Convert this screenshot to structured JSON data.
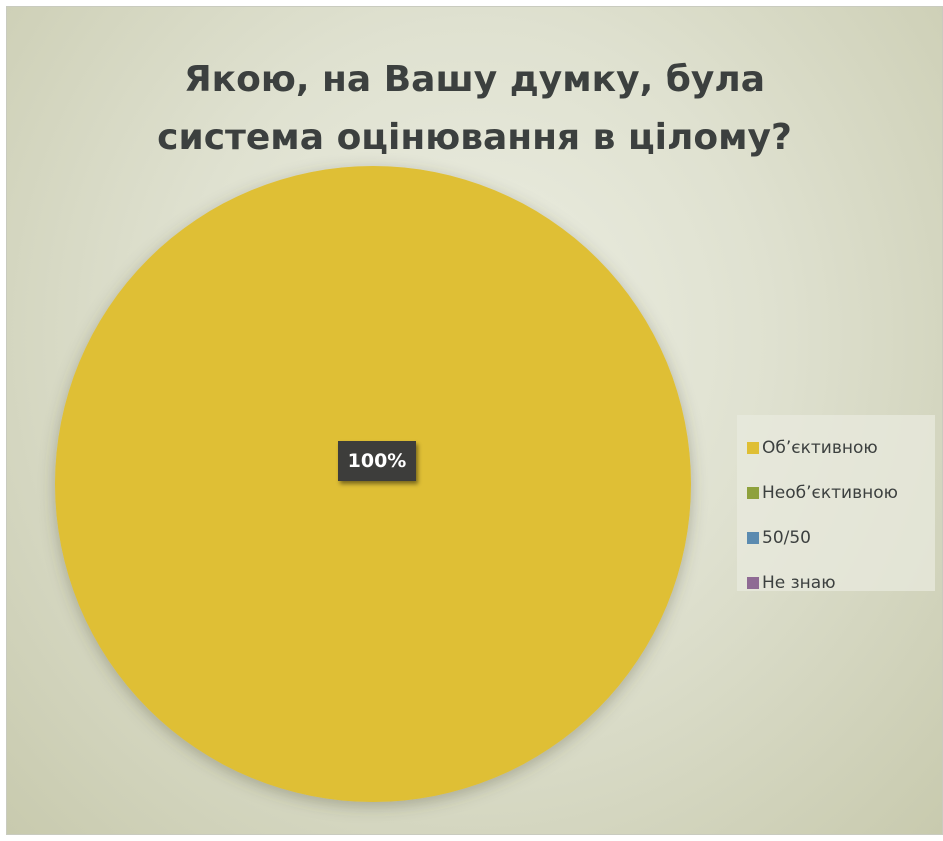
{
  "chart_data": {
    "type": "pie",
    "title_lines": [
      "Якою, на Вашу думку, була",
      "система оцінювання в цілому?"
    ],
    "categories": [
      "Об’єктивною",
      "Необ’єктивною",
      "50/50",
      "Не знаю"
    ],
    "values": [
      100,
      0,
      0,
      0
    ],
    "colors": [
      "#dfbf34",
      "#8ea13c",
      "#5b8bb0",
      "#8f6b94"
    ],
    "data_labels": [
      "100%"
    ],
    "legend_position": "right"
  }
}
